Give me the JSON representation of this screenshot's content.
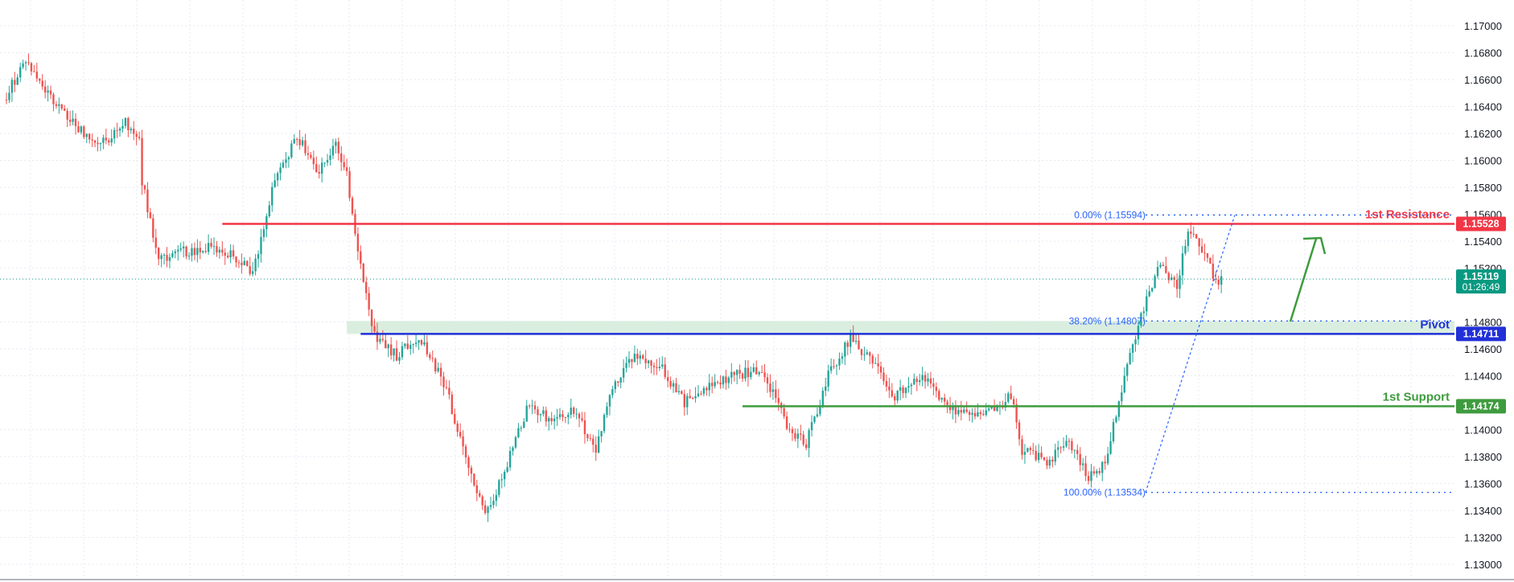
{
  "chart_data": {
    "type": "candlestick",
    "y_axis": {
      "range": [
        1.13,
        1.17
      ],
      "ticks": [
        "1.17000",
        "1.16800",
        "1.16600",
        "1.16400",
        "1.16200",
        "1.16000",
        "1.15800",
        "1.15600",
        "1.15400",
        "1.15200",
        "1.14800",
        "1.14600",
        "1.14400",
        "1.14000",
        "1.13800",
        "1.13600",
        "1.13400",
        "1.13200",
        "1.13000"
      ]
    },
    "grid": true,
    "colors": {
      "up": "#26a69a",
      "down": "#ef5350",
      "resistance": "#f23645",
      "pivot": "#2130d8",
      "support": "#3e9b3e",
      "fib": "#2962ff",
      "price": "#089981",
      "zone": "#cde8d5"
    },
    "current_price": {
      "label": "1.15119",
      "value": 1.15119,
      "countdown": "01:26:49"
    },
    "levels": [
      {
        "name": "1st Resistance",
        "value": 1.15528,
        "label": "1.15528",
        "color": "#f23645"
      },
      {
        "name": "Pivot",
        "value": 1.14711,
        "label": "1.14711",
        "color": "#2130d8"
      },
      {
        "name": "1st Support",
        "value": 1.14174,
        "label": "1.14174",
        "color": "#3e9b3e"
      }
    ],
    "fibonacci": [
      {
        "label": "0.00% (1.15594)",
        "value": 1.15594
      },
      {
        "label": "38.20% (1.14807)",
        "value": 1.14807
      },
      {
        "label": "100.00% (1.13534)",
        "value": 1.13534
      }
    ],
    "zone": {
      "top": 1.14807,
      "bottom": 1.14711
    },
    "anchors": [
      [
        0,
        1.1645
      ],
      [
        8,
        1.1675
      ],
      [
        14,
        1.1655
      ],
      [
        24,
        1.163
      ],
      [
        34,
        1.161
      ],
      [
        44,
        1.1628
      ],
      [
        49,
        1.1615
      ],
      [
        50,
        1.1585
      ],
      [
        56,
        1.1525
      ],
      [
        64,
        1.1532
      ],
      [
        74,
        1.1535
      ],
      [
        84,
        1.1528
      ],
      [
        90,
        1.1515
      ],
      [
        98,
        1.1585
      ],
      [
        106,
        1.1618
      ],
      [
        114,
        1.1592
      ],
      [
        120,
        1.161
      ],
      [
        124,
        1.159
      ],
      [
        129,
        1.152
      ],
      [
        134,
        1.147
      ],
      [
        142,
        1.1455
      ],
      [
        150,
        1.147
      ],
      [
        160,
        1.143
      ],
      [
        168,
        1.137
      ],
      [
        174,
        1.1335
      ],
      [
        182,
        1.1375
      ],
      [
        190,
        1.142
      ],
      [
        198,
        1.1405
      ],
      [
        206,
        1.1415
      ],
      [
        214,
        1.1385
      ],
      [
        220,
        1.143
      ],
      [
        228,
        1.1455
      ],
      [
        238,
        1.1445
      ],
      [
        246,
        1.142
      ],
      [
        254,
        1.143
      ],
      [
        264,
        1.144
      ],
      [
        274,
        1.1445
      ],
      [
        284,
        1.14
      ],
      [
        290,
        1.139
      ],
      [
        298,
        1.144
      ],
      [
        306,
        1.1468
      ],
      [
        314,
        1.145
      ],
      [
        322,
        1.1425
      ],
      [
        332,
        1.144
      ],
      [
        340,
        1.142
      ],
      [
        348,
        1.141
      ],
      [
        356,
        1.1412
      ],
      [
        364,
        1.1425
      ],
      [
        368,
        1.1385
      ],
      [
        378,
        1.1375
      ],
      [
        384,
        1.1395
      ],
      [
        392,
        1.1365
      ],
      [
        398,
        1.1375
      ],
      [
        406,
        1.145
      ],
      [
        412,
        1.149
      ],
      [
        418,
        1.1525
      ],
      [
        424,
        1.1505
      ],
      [
        428,
        1.155
      ],
      [
        434,
        1.153
      ],
      [
        438,
        1.151
      ]
    ]
  }
}
